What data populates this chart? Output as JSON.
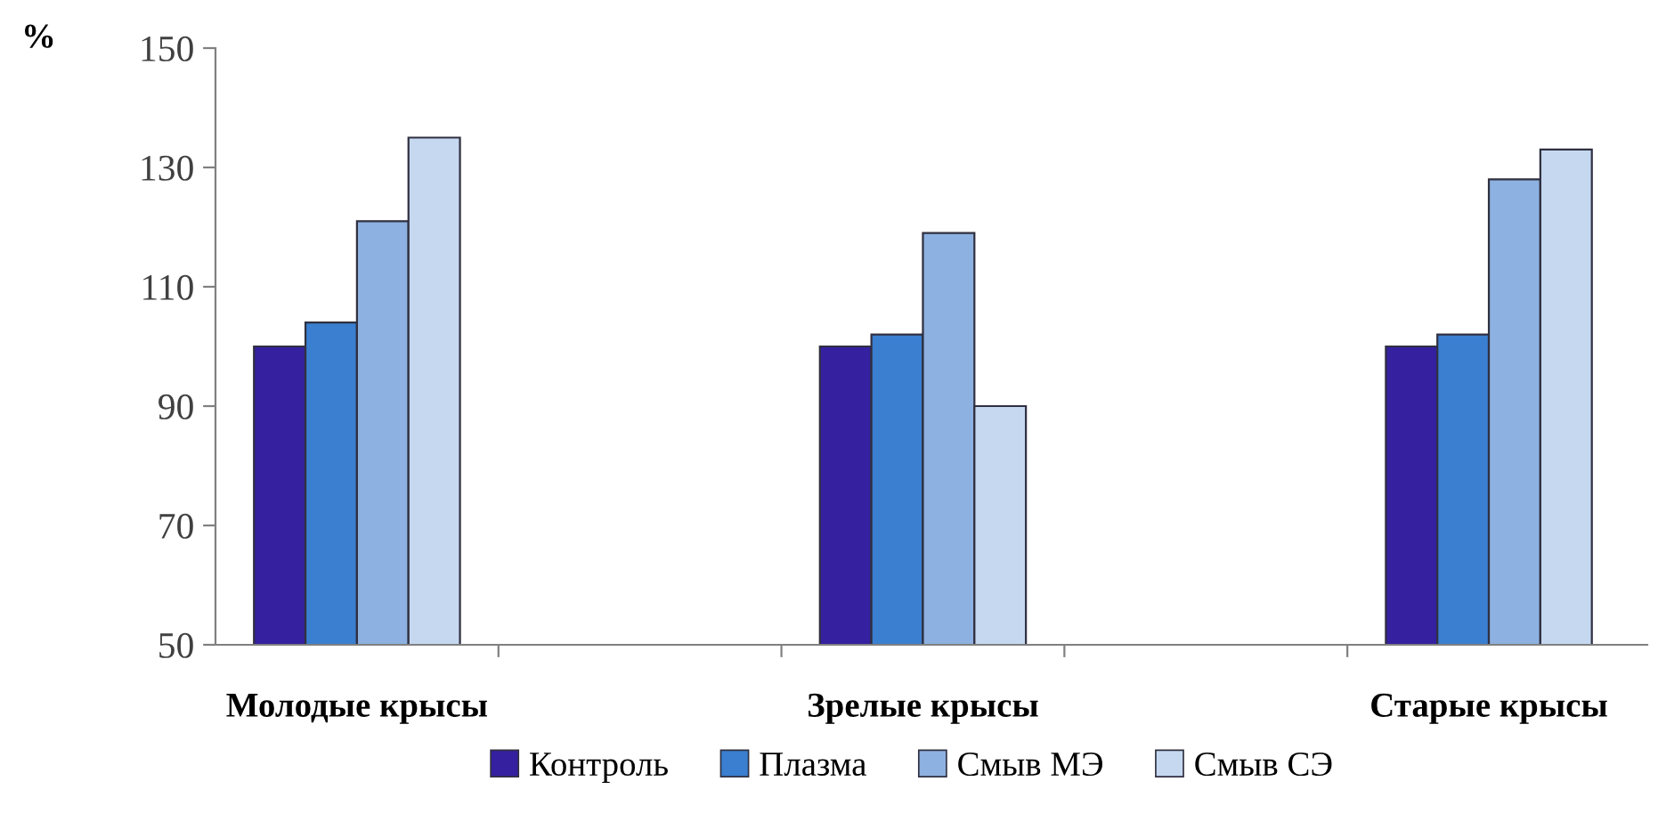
{
  "chart_data": {
    "type": "bar",
    "ylabel": "%",
    "categories": [
      "Молодые крысы",
      null,
      "Зрелые крысы",
      null,
      "Старые крысы"
    ],
    "series": [
      {
        "name": "Контроль",
        "color": "#3520a0",
        "values": [
          100,
          null,
          100,
          null,
          100
        ]
      },
      {
        "name": "Плазма",
        "color": "#3a7fd0",
        "values": [
          104,
          null,
          102,
          null,
          102
        ]
      },
      {
        "name": "Смыв МЭ",
        "color": "#8db1e0",
        "values": [
          121,
          null,
          119,
          null,
          128
        ]
      },
      {
        "name": "Смыв СЭ",
        "color": "#c5d8f0",
        "values": [
          135,
          null,
          90,
          null,
          133
        ]
      }
    ],
    "ylim": [
      50,
      150
    ],
    "yticks": [
      50,
      70,
      90,
      110,
      130,
      150
    ],
    "grid": false,
    "legend": "bottom"
  }
}
